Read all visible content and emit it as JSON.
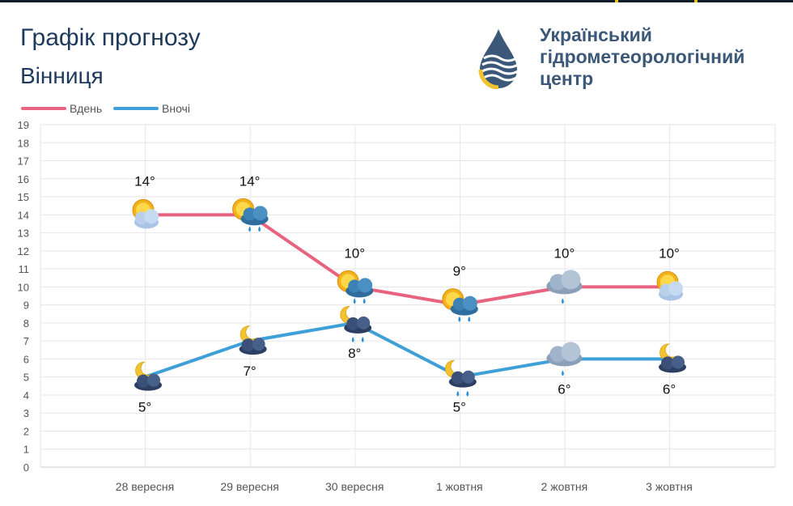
{
  "header": {
    "title": "Графік прогнозу",
    "city": "Вінниця",
    "org_lines": [
      "Український",
      "гідрометеорологічний",
      "центр"
    ]
  },
  "colors": {
    "day": "#e8637f",
    "night": "#3fa0d8",
    "grid": "#e6e6e6",
    "title": "#1d3a5c"
  },
  "chart_data": {
    "type": "line",
    "categories": [
      "28 вересня",
      "29 вересня",
      "30 вересня",
      "1 жовтня",
      "2 жовтня",
      "3 жовтня"
    ],
    "series": [
      {
        "name": "Вдень",
        "values": [
          14,
          14,
          10,
          9,
          10,
          10
        ],
        "labels": [
          "14°",
          "14°",
          "10°",
          "9°",
          "10°",
          "10°"
        ],
        "icons": [
          "sun-cloud-icon",
          "sun-cloud-rain-icon",
          "sun-cloud-rain-icon",
          "sun-cloud-rain-icon",
          "cloud-rain-icon",
          "sun-cloud-icon"
        ]
      },
      {
        "name": "Вночі",
        "values": [
          5,
          7,
          8,
          5,
          6,
          6
        ],
        "labels": [
          "5°",
          "7°",
          "8°",
          "5°",
          "6°",
          "6°"
        ],
        "icons": [
          "moon-cloud-icon",
          "moon-cloud-icon",
          "moon-cloud-rain-icon",
          "moon-cloud-rain-icon",
          "cloud-rain-icon",
          "moon-cloud-icon"
        ]
      }
    ],
    "ylim": [
      0,
      19
    ],
    "yticks": [
      "0",
      "1",
      "2",
      "3",
      "4",
      "5",
      "6",
      "7",
      "8",
      "9",
      "10",
      "11",
      "12",
      "13",
      "14",
      "15",
      "16",
      "17",
      "18",
      "19"
    ],
    "grid": true,
    "legend": "top-left"
  }
}
